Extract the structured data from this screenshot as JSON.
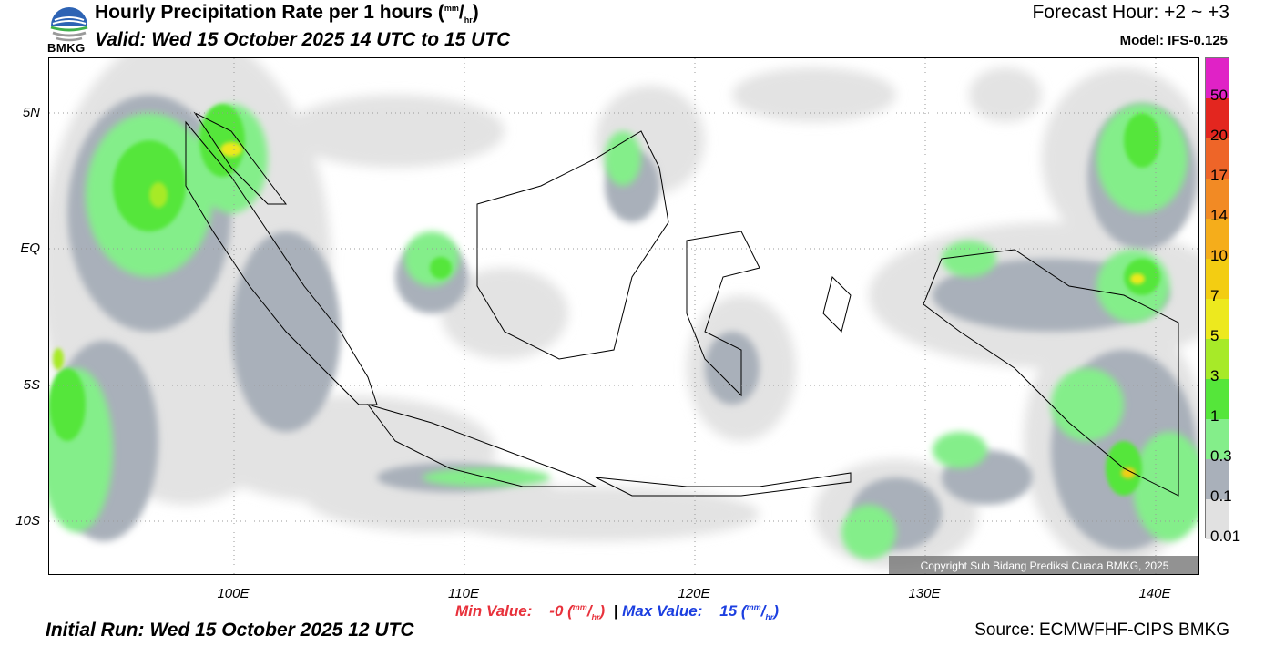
{
  "header": {
    "title": "Hourly Precipitation Rate per 1 hours (",
    "title_unit_num": "mm",
    "title_unit_den": "hr",
    "title_close": ")",
    "valid": "Valid: Wed 15 October 2025 14 UTC to 15 UTC",
    "forecast_hour": "Forecast Hour: +2 ~ +3",
    "model": "Model: IFS-0.125",
    "logo_text": "BMKG"
  },
  "map": {
    "lat_labels": [
      "5N",
      "EQ",
      "5S",
      "10S"
    ],
    "lon_labels": [
      "100E",
      "110E",
      "120E",
      "130E",
      "140E"
    ],
    "copyright": "Copyright Sub Bidang Prediksi Cuaca BMKG, 2025"
  },
  "legend": {
    "labels": [
      "50",
      "20",
      "17",
      "14",
      "10",
      "7",
      "5",
      "3",
      "1",
      "0.3",
      "0.1",
      "0.01"
    ],
    "colors": [
      "#e022c6",
      "#e3261f",
      "#ee6528",
      "#f28a24",
      "#f5ad1b",
      "#f3cd12",
      "#ede91e",
      "#a7ea28",
      "#55e63a",
      "#84ee8a",
      "#a9b0ba",
      "#e1e1e1"
    ]
  },
  "footer": {
    "min_label": "Min Value:",
    "min_value": "-0 (",
    "max_label": "Max Value:",
    "max_value": "15 (",
    "unit_num": "mm",
    "unit_den": "hr",
    "unit_close": ")",
    "separator": "|",
    "initial_run": "Initial Run: Wed 15 October 2025 12 UTC",
    "source": "Source: ECMWFHF-CIPS BMKG"
  }
}
